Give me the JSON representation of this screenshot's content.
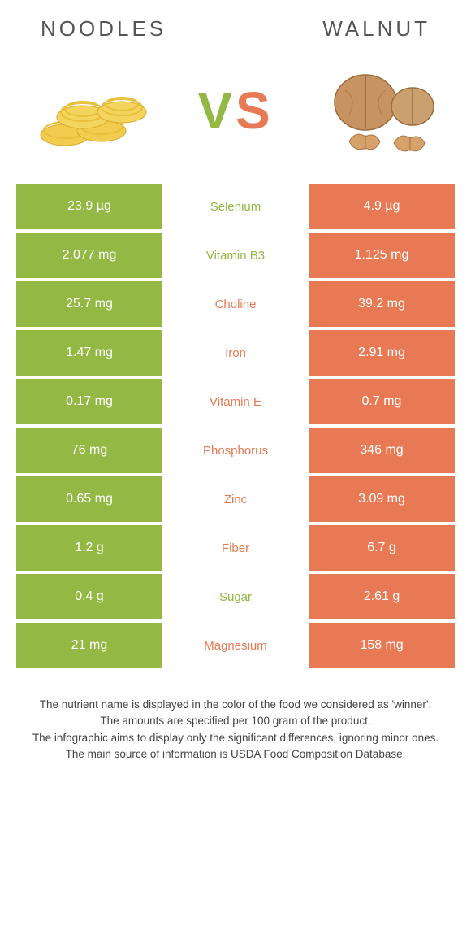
{
  "left_title": "Noodles",
  "right_title": "Walnut",
  "vs_v": "V",
  "vs_s": "S",
  "colors": {
    "left": "#93b843",
    "right": "#e77a54",
    "bg": "#ffffff"
  },
  "rows": [
    {
      "label": "Selenium",
      "left": "23.9 µg",
      "right": "4.9 µg",
      "winner": "left"
    },
    {
      "label": "Vitamin B3",
      "left": "2.077 mg",
      "right": "1.125 mg",
      "winner": "left"
    },
    {
      "label": "Choline",
      "left": "25.7 mg",
      "right": "39.2 mg",
      "winner": "right"
    },
    {
      "label": "Iron",
      "left": "1.47 mg",
      "right": "2.91 mg",
      "winner": "right"
    },
    {
      "label": "Vitamin E",
      "left": "0.17 mg",
      "right": "0.7 mg",
      "winner": "right"
    },
    {
      "label": "Phosphorus",
      "left": "76 mg",
      "right": "346 mg",
      "winner": "right"
    },
    {
      "label": "Zinc",
      "left": "0.65 mg",
      "right": "3.09 mg",
      "winner": "right"
    },
    {
      "label": "Fiber",
      "left": "1.2 g",
      "right": "6.7 g",
      "winner": "right"
    },
    {
      "label": "Sugar",
      "left": "0.4 g",
      "right": "2.61 g",
      "winner": "left"
    },
    {
      "label": "Magnesium",
      "left": "21 mg",
      "right": "158 mg",
      "winner": "right"
    }
  ],
  "footer": [
    "The nutrient name is displayed in the color of the food we considered as 'winner'.",
    "The amounts are specified per 100 gram of the product.",
    "The infographic aims to display only the significant differences, ignoring minor ones.",
    "The main source of information is USDA Food Composition Database."
  ]
}
